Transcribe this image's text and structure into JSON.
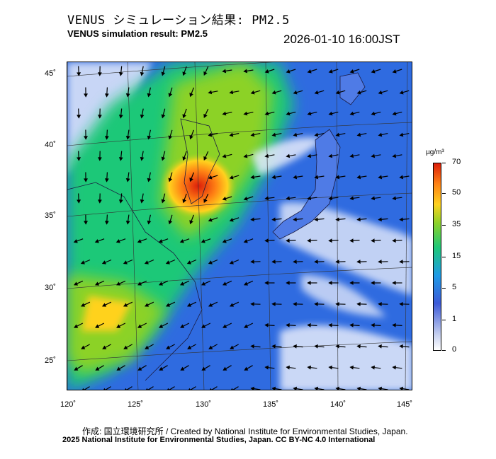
{
  "header": {
    "title_jp": "VENUS シミュレーション結果: PM2.5",
    "title_en": "VENUS simulation result: PM2.5",
    "timestamp": "2026-01-10 16:00JST"
  },
  "map": {
    "lat_labels": [
      "45˚",
      "40˚",
      "35˚",
      "30˚",
      "25˚"
    ],
    "lon_labels": [
      "120˚",
      "125˚",
      "130˚",
      "135˚",
      "140˚",
      "145˚"
    ],
    "colors": {
      "ocean_clean": "#3c64dc",
      "land_high": "#dc1e0a",
      "land_mid": "#ffd21e",
      "green": "#1ec878",
      "cloud": "#e6ebfa"
    }
  },
  "legend": {
    "unit": "µg/m³",
    "ticks": [
      "70",
      "50",
      "35",
      "15",
      "5",
      "1",
      "0"
    ]
  },
  "footer": {
    "credit": "作成: 国立環境研究所 / Created by National Institute for Environmental Studies, Japan.",
    "license": "2025 National Institute for Environmental Studies, Japan. CC BY-NC 4.0 International"
  }
}
